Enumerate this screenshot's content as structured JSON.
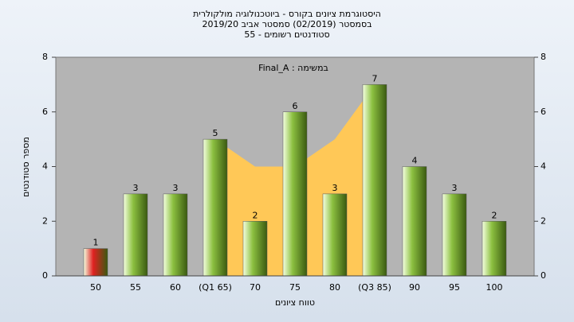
{
  "chart_data": {
    "type": "bar",
    "title": "היסטוגרמת ציונים בקורס - ביוטכנולוגיה מולקולרית",
    "subtitle": "בסמסטר  (02/2019)  סמסטר אביב 2019/20",
    "subtitle2": "סטודנטים רשומים - 55",
    "annotation": "Final_A : במשימה",
    "y_label": "מספר סטודנטים",
    "x_label": "טווח ציונים",
    "categories": [
      "50",
      "55",
      "60",
      "(Q1 65)",
      "70",
      "75",
      "80",
      "(Q3 85)",
      "90",
      "95",
      "100"
    ],
    "values": [
      1,
      3,
      3,
      5,
      2,
      6,
      3,
      7,
      4,
      3,
      2
    ],
    "colors": [
      "#e02020",
      "#8cc040",
      "#8cc040",
      "#8cc040",
      "#8cc040",
      "#8cc040",
      "#8cc040",
      "#8cc040",
      "#8cc040",
      "#8cc040",
      "#8cc040"
    ],
    "area": {
      "color": "#ffc857",
      "values": [
        null,
        null,
        null,
        5,
        4,
        4,
        5,
        7,
        null,
        null,
        null
      ]
    },
    "ylim": [
      0,
      8
    ],
    "yticks": [
      0,
      2,
      4,
      6,
      8
    ],
    "grid": false
  }
}
